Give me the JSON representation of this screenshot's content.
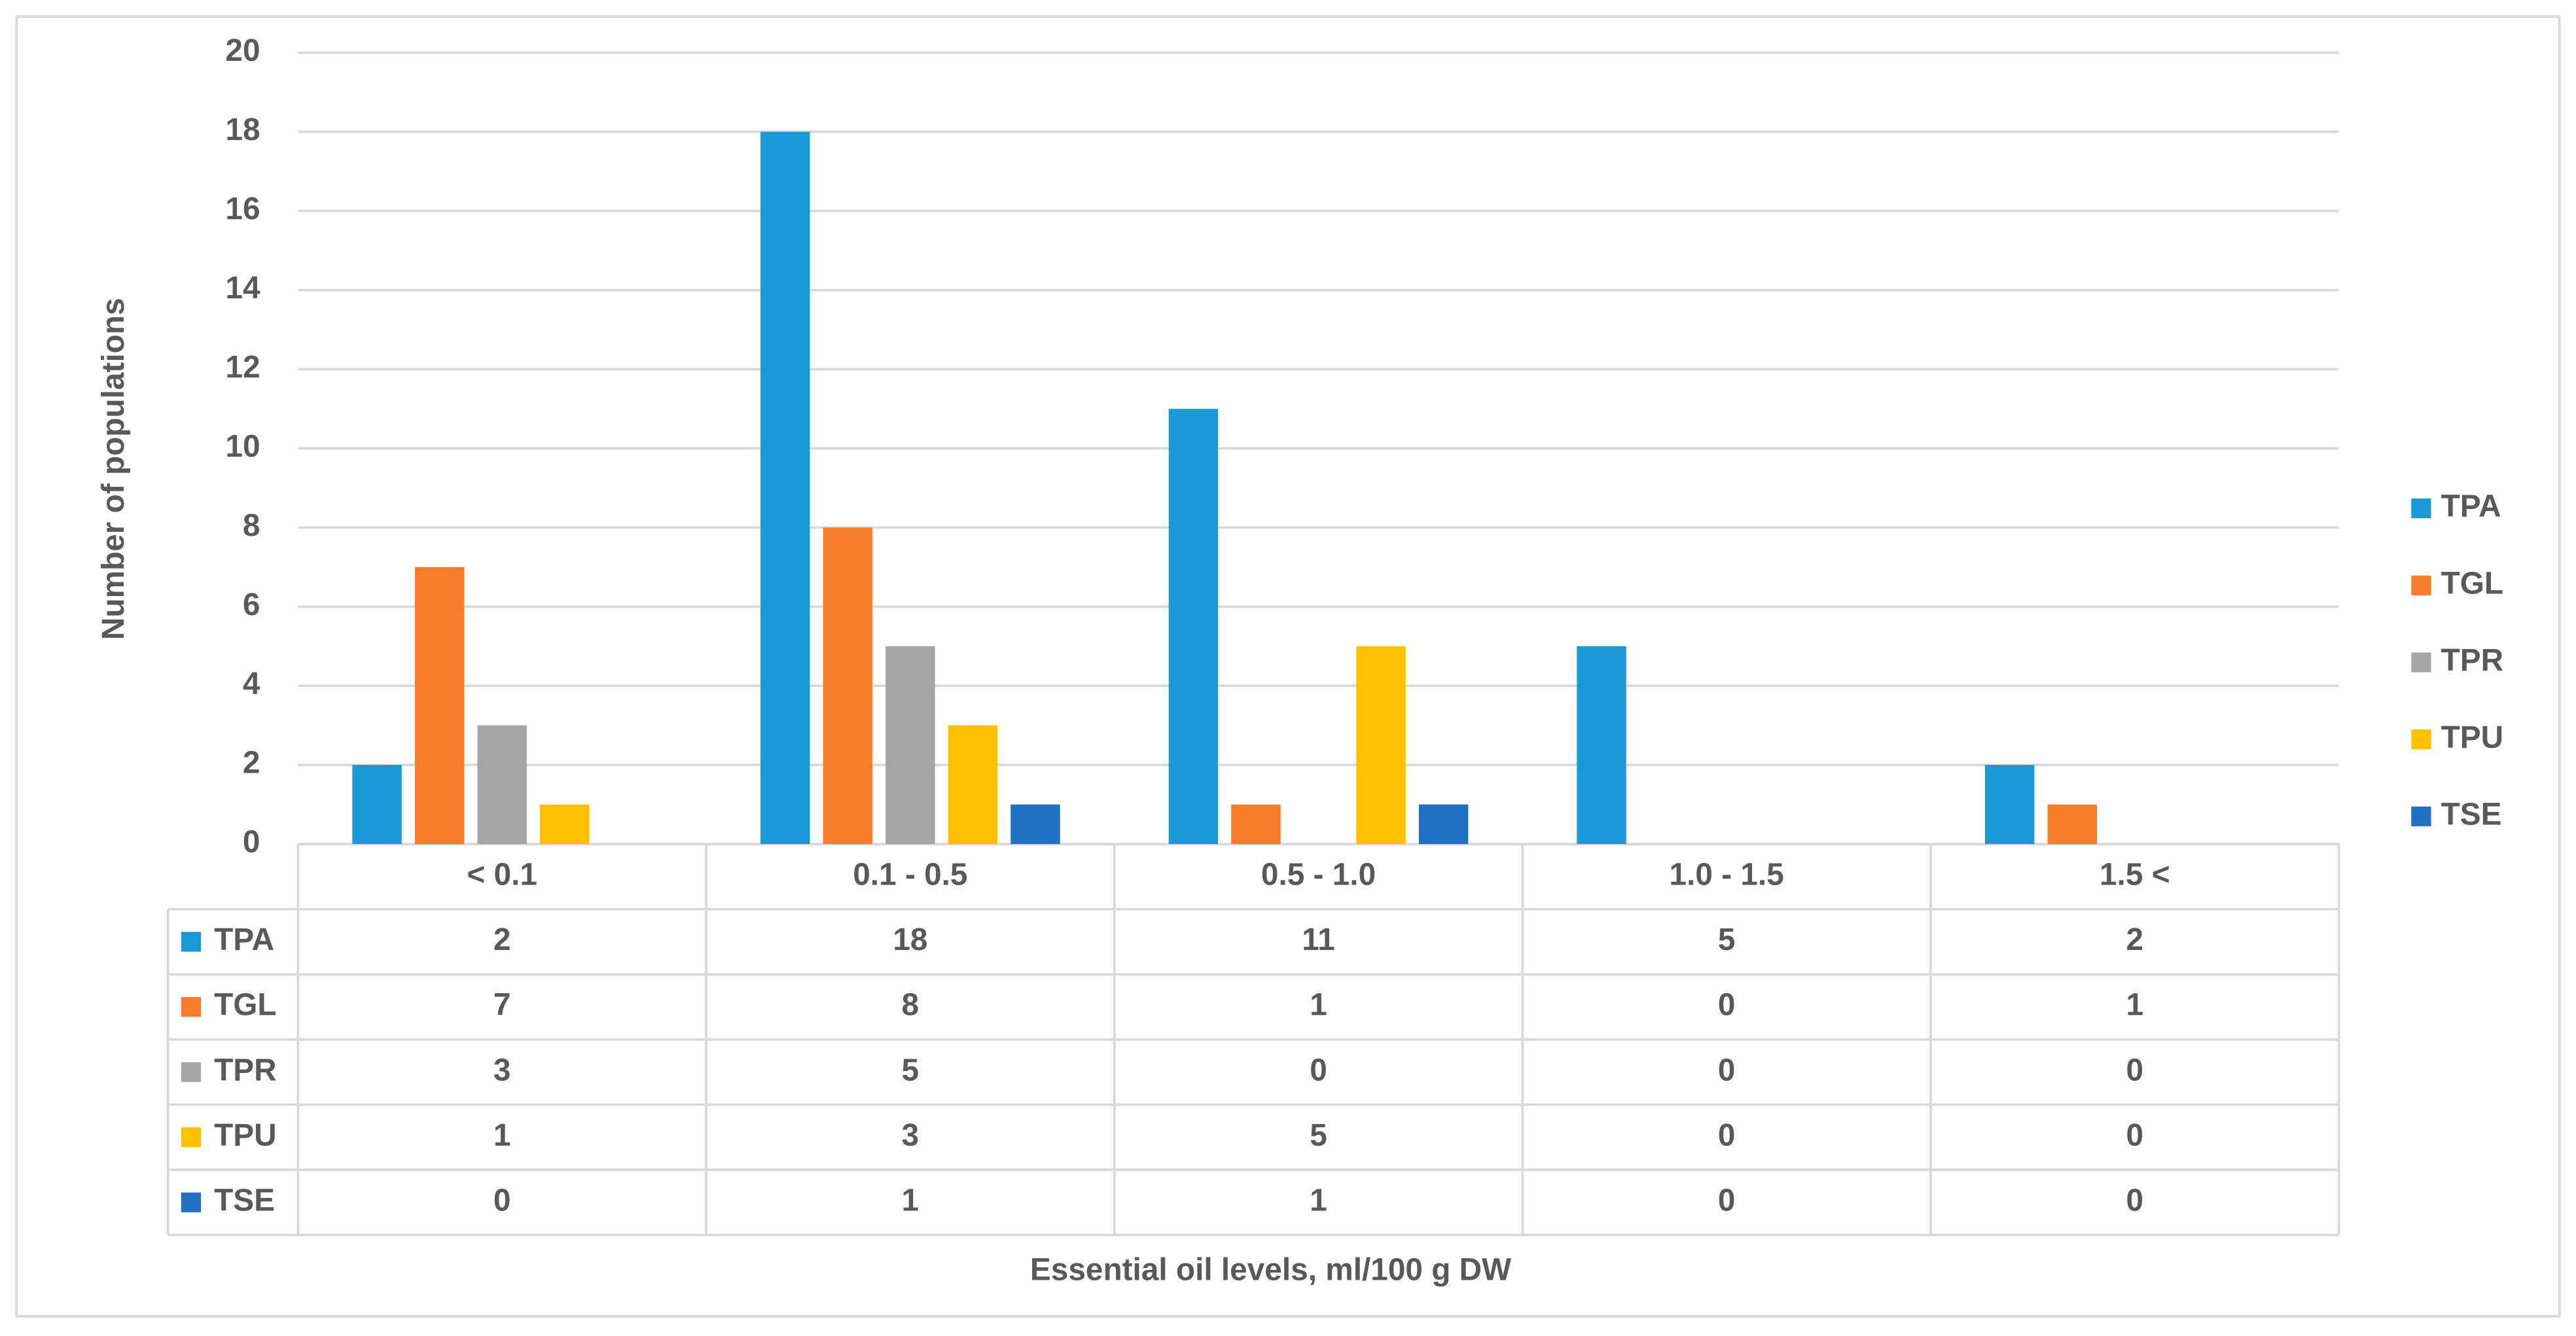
{
  "chart_data": {
    "type": "bar",
    "x_label": "Essential oil levels, ml/100 g DW",
    "y_label": "Number of populations",
    "categories": [
      "< 0.1",
      "0.1 - 0.5",
      "0.5 - 1.0",
      "1.0 - 1.5",
      "1.5 <"
    ],
    "series": [
      {
        "name": "TPA",
        "color": "#199ad7",
        "values": [
          2,
          18,
          11,
          5,
          2
        ]
      },
      {
        "name": "TGL",
        "color": "#f97c2b",
        "values": [
          7,
          8,
          1,
          0,
          1
        ]
      },
      {
        "name": "TPR",
        "color": "#a5a5a5",
        "values": [
          3,
          5,
          0,
          0,
          0
        ]
      },
      {
        "name": "TPU",
        "color": "#ffc000",
        "values": [
          1,
          3,
          5,
          0,
          0
        ]
      },
      {
        "name": "TSE",
        "color": "#2270c4",
        "values": [
          0,
          1,
          1,
          0,
          0
        ]
      }
    ],
    "ylim": [
      0,
      20
    ],
    "yticks": [
      0,
      2,
      4,
      6,
      8,
      10,
      12,
      14,
      16,
      18,
      20
    ],
    "grid": true,
    "legend": "right",
    "data_table": true
  }
}
